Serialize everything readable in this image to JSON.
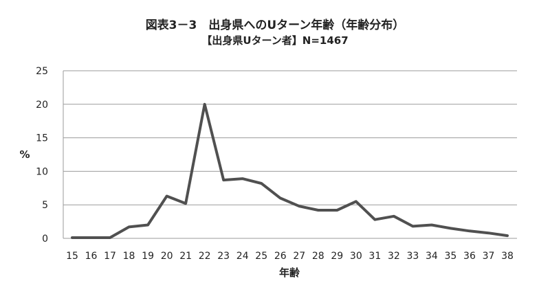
{
  "chart_data": {
    "type": "line",
    "title": "図表3－3　出身県へのUターン年齢（年齢分布）",
    "subtitle": "【出身県Uターン者】N=1467",
    "xlabel": "年齢",
    "ylabel": "%",
    "ylim": [
      0,
      25
    ],
    "yticks": [
      0,
      5,
      10,
      15,
      20,
      25
    ],
    "grid": true,
    "legend": "none",
    "line_color": "#505050",
    "categories": [
      "15",
      "16",
      "17",
      "18",
      "19",
      "20",
      "21",
      "22",
      "23",
      "24",
      "25",
      "26",
      "27",
      "28",
      "29",
      "30",
      "31",
      "32",
      "33",
      "34",
      "35",
      "36",
      "37",
      "38"
    ],
    "series": [
      {
        "values": [
          0.1,
          0.1,
          0.1,
          1.7,
          2.0,
          6.3,
          5.2,
          20.0,
          8.7,
          8.9,
          8.2,
          6.0,
          4.8,
          4.2,
          4.2,
          5.5,
          2.8,
          3.3,
          1.8,
          2.0,
          1.5,
          1.1,
          0.8,
          0.4
        ]
      }
    ]
  }
}
